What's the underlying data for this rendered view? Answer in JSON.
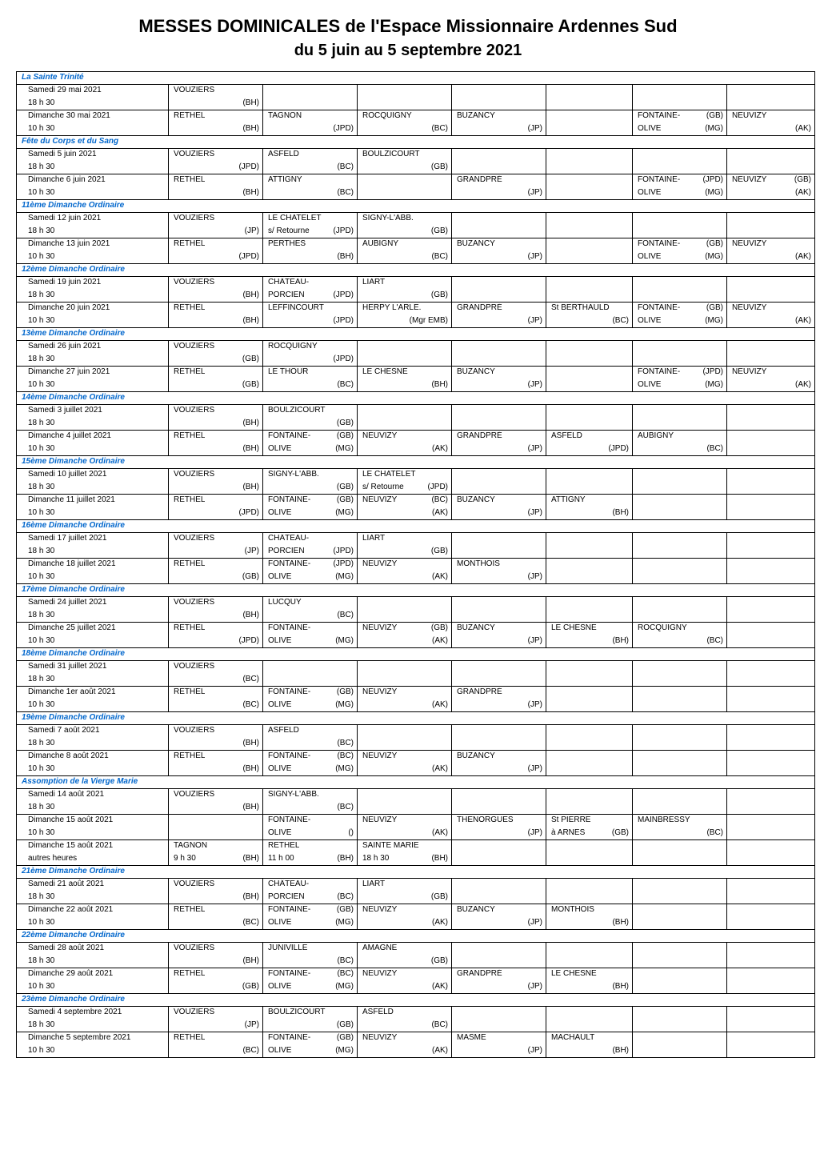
{
  "title_main": "MESSES DOMINICALES de l'Espace Missionnaire Ardennes Sud",
  "title_sub": "du 5 juin au 5 septembre 2021",
  "title_main_fontsize": "22px",
  "title_sub_fontsize": "20px",
  "table_fontsize": "10px",
  "section_color": "#0066cc",
  "border_color": "#000000",
  "columns": [
    "label",
    "c1",
    "c2",
    "c3",
    "c4",
    "c5",
    "c6",
    "c7"
  ],
  "sections": [
    {
      "header": "La Sainte Trinité",
      "rows": [
        {
          "top": {
            "label": "Samedi 29 mai 2021",
            "c1l": "VOUZIERS"
          },
          "bot": {
            "label": "18 h 30",
            "c1r": "(BH)"
          }
        },
        {
          "top": {
            "label": "Dimanche 30 mai 2021",
            "c1l": "RETHEL",
            "c2l": "TAGNON",
            "c3l": "ROCQUIGNY",
            "c4l": "BUZANCY",
            "c6l": "FONTAINE-",
            "c6r": "(GB)",
            "c7l": "NEUVIZY"
          },
          "bot": {
            "label": "10 h 30",
            "c1r": "(BH)",
            "c2r": "(JPD)",
            "c3r": "(BC)",
            "c4r": "(JP)",
            "c6l": "OLIVE",
            "c6r": "(MG)",
            "c7r": "(AK)"
          }
        }
      ]
    },
    {
      "header": "Fête du Corps et du Sang",
      "rows": [
        {
          "top": {
            "label": "Samedi 5 juin 2021",
            "c1l": "VOUZIERS",
            "c2l": "ASFELD",
            "c3l": "BOULZICOURT"
          },
          "bot": {
            "label": "18 h 30",
            "c1r": "(JPD)",
            "c2r": "(BC)",
            "c3r": "(GB)"
          }
        },
        {
          "top": {
            "label": "Dimanche 6 juin 2021",
            "c1l": "RETHEL",
            "c2l": "ATTIGNY",
            "c4l": "GRANDPRÉ",
            "c6l": "FONTAINE-",
            "c6r": "(JPD)",
            "c7l": "NEUVIZY",
            "c7r": "(GB)"
          },
          "bot": {
            "label": "10 h 30",
            "c1r": "(BH)",
            "c2r": "(BC)",
            "c4r": "(JP)",
            "c6l": "OLIVE",
            "c6r": "(MG)",
            "c7r": "(AK)"
          }
        }
      ]
    },
    {
      "header": "11ème Dimanche Ordinaire",
      "rows": [
        {
          "top": {
            "label": "Samedi 12 juin 2021",
            "c1l": "VOUZIERS",
            "c2l": "LE CHATELET",
            "c3l": "SIGNY-L'ABB."
          },
          "bot": {
            "label": "18 h 30",
            "c1r": "(JP)",
            "c2l": "s/ Retourne",
            "c2r": "(JPD)",
            "c3r": "(GB)"
          }
        },
        {
          "top": {
            "label": "Dimanche 13 juin 2021",
            "c1l": "RETHEL",
            "c2l": "PERTHES",
            "c3l": "AUBIGNY",
            "c4l": "BUZANCY",
            "c6l": "FONTAINE-",
            "c6r": "(GB)",
            "c7l": "NEUVIZY"
          },
          "bot": {
            "label": "10 h 30",
            "c1r": "(JPD)",
            "c2r": "(BH)",
            "c3r": "(BC)",
            "c4r": "(JP)",
            "c6l": "OLIVE",
            "c6r": "(MG)",
            "c7r": "(AK)"
          }
        }
      ]
    },
    {
      "header": "12ème Dimanche Ordinaire",
      "rows": [
        {
          "top": {
            "label": "Samedi 19 juin 2021",
            "c1l": "VOUZIERS",
            "c2l": "CHÂTEAU-",
            "c3l": "LIART"
          },
          "bot": {
            "label": "18 h 30",
            "c1r": "(BH)",
            "c2l": "PORCIEN",
            "c2r": "(JPD)",
            "c3r": "(GB)"
          }
        },
        {
          "top": {
            "label": "Dimanche 20 juin 2021",
            "c1l": "RETHEL",
            "c2l": "LEFFINCOURT",
            "c3l": "HERPY L'ARLE.",
            "c4l": "GRANDPRÉ",
            "c5l": "St BERTHAULD",
            "c6l": "FONTAINE-",
            "c6r": "(GB)",
            "c7l": "NEUVIZY"
          },
          "bot": {
            "label": "10 h 30",
            "c1r": "(BH)",
            "c2r": "(JPD)",
            "c3r": "(Mgr EMB)",
            "c4r": "(JP)",
            "c5r": "(BC)",
            "c6l": "OLIVE",
            "c6r": "(MG)",
            "c7r": "(AK)"
          }
        }
      ]
    },
    {
      "header": "13ème Dimanche Ordinaire",
      "rows": [
        {
          "top": {
            "label": "Samedi 26 juin 2021",
            "c1l": "VOUZIERS",
            "c2l": "ROCQUIGNY"
          },
          "bot": {
            "label": "18 h 30",
            "c1r": "(GB)",
            "c2r": "(JPD)"
          }
        },
        {
          "top": {
            "label": "Dimanche 27 juin 2021",
            "c1l": "RETHEL",
            "c2l": "LE THOUR",
            "c3l": "LE CHESNE",
            "c4l": "BUZANCY",
            "c6l": "FONTAINE-",
            "c6r": "(JPD)",
            "c7l": "NEUVIZY"
          },
          "bot": {
            "label": "10 h 30",
            "c1r": "(GB)",
            "c2r": "(BC)",
            "c3r": "(BH)",
            "c4r": "(JP)",
            "c6l": "OLIVE",
            "c6r": "(MG)",
            "c7r": "(AK)"
          }
        }
      ]
    },
    {
      "header": "14ème Dimanche Ordinaire",
      "rows": [
        {
          "top": {
            "label": "Samedi 3 juillet 2021",
            "c1l": "VOUZIERS",
            "c2l": "BOULZICOURT"
          },
          "bot": {
            "label": "18 h 30",
            "c1r": "(BH)",
            "c2r": "(GB)"
          }
        },
        {
          "top": {
            "label": "Dimanche 4 juillet 2021",
            "c1l": "RETHEL",
            "c2l": "FONTAINE-",
            "c2r": "(GB)",
            "c3l": "NEUVIZY",
            "c4l": "GRANDPRÉ",
            "c5l": "ASFELD",
            "c6l": "AUBIGNY"
          },
          "bot": {
            "label": "10 h 30",
            "c1r": "(BH)",
            "c2l": "OLIVE",
            "c2r": "(MG)",
            "c3r": "(AK)",
            "c4r": "(JP)",
            "c5r": "(JPD)",
            "c6r": "(BC)"
          }
        }
      ]
    },
    {
      "header": "15ème Dimanche Ordinaire",
      "rows": [
        {
          "top": {
            "label": "Samedi 10 juillet 2021",
            "c1l": "VOUZIERS",
            "c2l": "SIGNY-L'ABB.",
            "c3l": "LE CHATELET"
          },
          "bot": {
            "label": "18 h 30",
            "c1r": "(BH)",
            "c2r": "(GB)",
            "c3l": "s/ Retourne",
            "c3r": "(JPD)"
          }
        },
        {
          "top": {
            "label": "Dimanche 11 juillet 2021",
            "c1l": "RETHEL",
            "c2l": "FONTAINE-",
            "c2r": "(GB)",
            "c3l": "NEUVIZY",
            "c3r": "(BC)",
            "c4l": "BUZANCY",
            "c5l": "ATTIGNY"
          },
          "bot": {
            "label": "10 h 30",
            "c1r": "(JPD)",
            "c2l": "OLIVE",
            "c2r": "(MG)",
            "c3r": "(AK)",
            "c4r": "(JP)",
            "c5r": "(BH)"
          }
        }
      ]
    },
    {
      "header": "16ème Dimanche Ordinaire",
      "rows": [
        {
          "top": {
            "label": "Samedi 17 juillet 2021",
            "c1l": "VOUZIERS",
            "c2l": "CHÂTEAU-",
            "c3l": "LIART"
          },
          "bot": {
            "label": "18 h 30",
            "c1r": "(JP)",
            "c2l": "PORCIEN",
            "c2r": "(JPD)",
            "c3r": "(GB)"
          }
        },
        {
          "top": {
            "label": "Dimanche 18 juillet 2021",
            "c1l": "RETHEL",
            "c2l": "FONTAINE-",
            "c2r": "(JPD)",
            "c3l": "NEUVIZY",
            "c4l": "MONTHOIS"
          },
          "bot": {
            "label": "10 h 30",
            "c1r": "(GB)",
            "c2l": "OLIVE",
            "c2r": "(MG)",
            "c3r": "(AK)",
            "c4r": "(JP)"
          }
        }
      ]
    },
    {
      "header": "17ème Dimanche Ordinaire",
      "rows": [
        {
          "top": {
            "label": "Samedi 24 juillet 2021",
            "c1l": "VOUZIERS",
            "c2l": "LUCQUY"
          },
          "bot": {
            "label": "18 h 30",
            "c1r": "(BH)",
            "c2r": "(BC)"
          }
        },
        {
          "top": {
            "label": "Dimanche 25 juillet 2021",
            "c1l": "RETHEL",
            "c2l": "FONTAINE-",
            "c3l": "NEUVIZY",
            "c3r": "(GB)",
            "c4l": "BUZANCY",
            "c5l": "LE CHESNE",
            "c6l": "ROCQUIGNY"
          },
          "bot": {
            "label": "10 h 30",
            "c1r": "(JPD)",
            "c2l": "OLIVE",
            "c2r": "(MG)",
            "c3r": "(AK)",
            "c4r": "(JP)",
            "c5r": "(BH)",
            "c6r": "(BC)"
          }
        }
      ]
    },
    {
      "header": "18ème Dimanche Ordinaire",
      "rows": [
        {
          "top": {
            "label": "Samedi 31 juillet 2021",
            "c1l": "VOUZIERS"
          },
          "bot": {
            "label": "18 h 30",
            "c1r": "(BC)"
          }
        },
        {
          "top": {
            "label": "Dimanche 1er août 2021",
            "c1l": "RETHEL",
            "c2l": "FONTAINE-",
            "c2r": "(GB)",
            "c3l": "NEUVIZY",
            "c4l": "GRANDPRÉ"
          },
          "bot": {
            "label": "10 h 30",
            "c1r": "(BC)",
            "c2l": "OLIVE",
            "c2r": "(MG)",
            "c3r": "(AK)",
            "c4r": "(JP)"
          }
        }
      ]
    },
    {
      "header": "19ème Dimanche Ordinaire",
      "rows": [
        {
          "top": {
            "label": "Samedi 7 août 2021",
            "c1l": "VOUZIERS",
            "c2l": "ASFELD"
          },
          "bot": {
            "label": "18 h 30",
            "c1r": "(BH)",
            "c2r": "(BC)"
          }
        },
        {
          "top": {
            "label": "Dimanche 8 août 2021",
            "c1l": "RETHEL",
            "c2l": "FONTAINE-",
            "c2r": "(BC)",
            "c3l": "NEUVIZY",
            "c4l": "BUZANCY"
          },
          "bot": {
            "label": "10 h 30",
            "c1r": "(BH)",
            "c2l": "OLIVE",
            "c2r": "(MG)",
            "c3r": "(AK)",
            "c4r": "(JP)"
          }
        }
      ]
    },
    {
      "header": "Assomption de la Vierge Marie",
      "rows": [
        {
          "top": {
            "label": "Samedi 14 août 2021",
            "c1l": "VOUZIERS",
            "c2l": "SIGNY-L'ABB."
          },
          "bot": {
            "label": "18 h 30",
            "c1r": "(BH)",
            "c2r": "(BC)"
          }
        },
        {
          "top": {
            "label": "Dimanche 15 août 2021",
            "c2l": "FONTAINE-",
            "c3l": "NEUVIZY",
            "c4l": "THENORGUES",
            "c5l": "St PIERRE",
            "c6l": "MAINBRESSY"
          },
          "bot": {
            "label": "10 h 30",
            "c2l": "OLIVE",
            "c2r": "()",
            "c3r": "(AK)",
            "c4r": "(JP)",
            "c5l": "à ARNES",
            "c5r": "(GB)",
            "c6r": "(BC)"
          }
        },
        {
          "top": {
            "label": "Dimanche 15 août 2021",
            "c1l": "TAGNON",
            "c2l": "RETHEL",
            "c3l": "SAINTE MARIE"
          },
          "bot": {
            "label": "autres heures",
            "c1l": "9 h 30",
            "c1r": "(BH)",
            "c2l": "11 h 00",
            "c2r": "(BH)",
            "c3l": "18 h 30",
            "c3r": "(BH)"
          }
        }
      ]
    },
    {
      "header": "21ème Dimanche Ordinaire",
      "rows": [
        {
          "top": {
            "label": "Samedi 21 août 2021",
            "c1l": "VOUZIERS",
            "c2l": "CHÂTEAU-",
            "c3l": "LIART"
          },
          "bot": {
            "label": "18 h 30",
            "c1r": "(BH)",
            "c2l": "PORCIEN",
            "c2r": "(BC)",
            "c3r": "(GB)"
          }
        },
        {
          "top": {
            "label": "Dimanche 22 août 2021",
            "c1l": "RETHEL",
            "c2l": "FONTAINE-",
            "c2r": "(GB)",
            "c3l": "NEUVIZY",
            "c4l": "BUZANCY",
            "c5l": "MONTHOIS"
          },
          "bot": {
            "label": "10 h 30",
            "c1r": "(BC)",
            "c2l": "OLIVE",
            "c2r": "(MG)",
            "c3r": "(AK)",
            "c4r": "(JP)",
            "c5r": "(BH)"
          }
        }
      ]
    },
    {
      "header": "22ème Dimanche Ordinaire",
      "rows": [
        {
          "top": {
            "label": "Samedi 28 août 2021",
            "c1l": "VOUZIERS",
            "c2l": "JUNIVILLE",
            "c3l": "AMAGNE"
          },
          "bot": {
            "label": "18 h 30",
            "c1r": "(BH)",
            "c2r": "(BC)",
            "c3r": "(GB)"
          }
        },
        {
          "top": {
            "label": "Dimanche 29 août 2021",
            "c1l": "RETHEL",
            "c2l": "FONTAINE-",
            "c2r": "(BC)",
            "c3l": "NEUVIZY",
            "c4l": "GRANDPRÉ",
            "c5l": "LE CHESNE"
          },
          "bot": {
            "label": "10 h 30",
            "c1r": "(GB)",
            "c2l": "OLIVE",
            "c2r": "(MG)",
            "c3r": "(AK)",
            "c4r": "(JP)",
            "c5r": "(BH)"
          }
        }
      ]
    },
    {
      "header": "23ème Dimanche Ordinaire",
      "rows": [
        {
          "top": {
            "label": "Samedi 4 septembre 2021",
            "c1l": "VOUZIERS",
            "c2l": "BOULZICOURT",
            "c3l": "ASFELD"
          },
          "bot": {
            "label": "18 h 30",
            "c1r": "(JP)",
            "c2r": "(GB)",
            "c3r": "(BC)"
          }
        },
        {
          "top": {
            "label": "Dimanche 5 septembre 2021",
            "c1l": "RETHEL",
            "c2l": "FONTAINE-",
            "c2r": "(GB)",
            "c3l": "NEUVIZY",
            "c4l": "MASME",
            "c5l": "MACHAULT"
          },
          "bot": {
            "label": "10 h 30",
            "c1r": "(BC)",
            "c2l": "OLIVE",
            "c2r": "(MG)",
            "c3r": "(AK)",
            "c4r": "(JP)",
            "c5r": "(BH)"
          }
        }
      ]
    }
  ]
}
